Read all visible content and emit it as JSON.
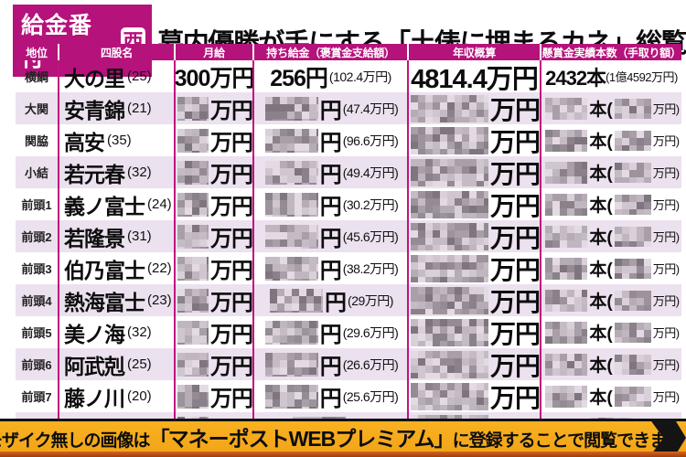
{
  "title": {
    "badge": "給金番付",
    "badge_icon": "西",
    "main": "幕内優勝が手にする「土俵に埋まるカネ」総覧"
  },
  "table": {
    "headers": [
      "地位",
      "四股名",
      "月給",
      "持ち給金（褒賞金支給額）",
      "年収概算",
      "懸賞金実績本数（手取り額）"
    ],
    "units": {
      "monthly": "万円",
      "mochi": "円",
      "annual": "万円",
      "kensho_open": "本(",
      "kensho_close": "万円)"
    },
    "rows": [
      {
        "rank": "横綱",
        "name": "大の里",
        "age": "(25)",
        "masked": false,
        "monthly": "300万円",
        "mochi": "256円",
        "mochi_paren": "(102.4万円)",
        "annual": "4814.4万円",
        "kensho": "2432本",
        "kensho_paren": "(1億4592万円)"
      },
      {
        "rank": "大関",
        "name": "安青錦",
        "age": "(21)",
        "masked": true,
        "mochi_paren": "(47.4万円)"
      },
      {
        "rank": "関脇",
        "name": "高安",
        "age": "(35)",
        "masked": true,
        "mochi_paren": "(96.6万円)"
      },
      {
        "rank": "小結",
        "name": "若元春",
        "age": "(32)",
        "masked": true,
        "mochi_paren": "(49.4万円)"
      },
      {
        "rank": "前頭1",
        "name": "義ノ富士",
        "age": "(24)",
        "masked": true,
        "mochi_paren": "(30.2万円)"
      },
      {
        "rank": "前頭2",
        "name": "若隆景",
        "age": "(31)",
        "masked": true,
        "mochi_paren": "(45.6万円)"
      },
      {
        "rank": "前頭3",
        "name": "伯乃富士",
        "age": "(22)",
        "masked": true,
        "mochi_paren": "(38.2万円)"
      },
      {
        "rank": "前頭4",
        "name": "熱海富士",
        "age": "(23)",
        "masked": true,
        "mochi_paren": "(29万円)"
      },
      {
        "rank": "前頭5",
        "name": "美ノ海",
        "age": "(32)",
        "masked": true,
        "mochi_paren": "(29.6万円)"
      },
      {
        "rank": "前頭6",
        "name": "阿武剋",
        "age": "(25)",
        "masked": true,
        "mochi_paren": "(26.6万円)"
      },
      {
        "rank": "前頭7",
        "name": "藤ノ川",
        "age": "(20)",
        "masked": true,
        "mochi_paren": "(25.6万円)"
      },
      {
        "rank": "",
        "name": "",
        "age": "",
        "masked": true,
        "mochi_paren": "",
        "partial": true
      }
    ]
  },
  "banner": {
    "pre": "モザイク無しの画像は",
    "bracket_open": "「",
    "highlight": "マネーポストWEBプレミアム",
    "bracket_close": "」",
    "post": "に登録することで閲覧できます"
  },
  "colors": {
    "magenta": "#b5127b",
    "divider_magenta": "#c11380",
    "row_alt": "#ece1ee",
    "banner_orange": "#f4a71e",
    "banner_strip": "#d2641f",
    "mosaic_palette": [
      "#a89fa9",
      "#948b95",
      "#bfb6c0",
      "#8a818b",
      "#cfc6d0",
      "#b5acb6",
      "#7e757f",
      "#d9d0da",
      "#9c939d",
      "#c4bbc5",
      "#e3dae4"
    ]
  }
}
